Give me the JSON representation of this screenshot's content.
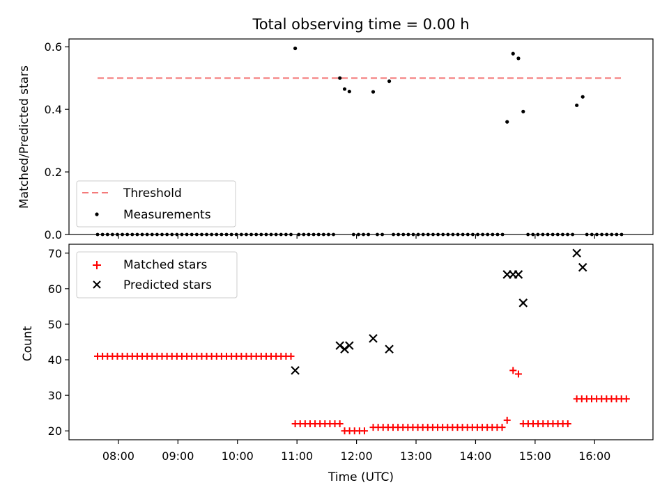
{
  "chart_data": [
    {
      "type": "scatter",
      "title": "Total observing time = 0.00 h",
      "xlabel": "",
      "ylabel": "Matched/Predicted stars",
      "ylim": [
        0,
        0.625
      ],
      "yticks": [
        "0.0",
        "0.2",
        "0.4",
        "0.6"
      ],
      "ytick_values": [
        0,
        0.2,
        0.4,
        0.6
      ],
      "legend_position": "lower-left",
      "threshold": {
        "name": "Threshold",
        "value": 0.5,
        "x_start": 7.65,
        "x_end": 16.5,
        "color": "#f47a7a"
      },
      "measurements": {
        "name": "Measurements",
        "color": "#000000",
        "points": [
          {
            "x": 10.97,
            "y": 0.595
          },
          {
            "x": 11.72,
            "y": 0.5
          },
          {
            "x": 11.8,
            "y": 0.465
          },
          {
            "x": 11.88,
            "y": 0.457
          },
          {
            "x": 12.28,
            "y": 0.456
          },
          {
            "x": 12.55,
            "y": 0.49
          },
          {
            "x": 14.53,
            "y": 0.36
          },
          {
            "x": 14.63,
            "y": 0.578
          },
          {
            "x": 14.72,
            "y": 0.563
          },
          {
            "x": 14.8,
            "y": 0.393
          },
          {
            "x": 15.7,
            "y": 0.413
          },
          {
            "x": 15.8,
            "y": 0.44
          }
        ],
        "zero_segments": [
          [
            7.65,
            10.9
          ],
          [
            11.03,
            11.65
          ],
          [
            11.95,
            12.2
          ],
          [
            12.35,
            12.48
          ],
          [
            12.62,
            14.47
          ],
          [
            14.88,
            15.63
          ],
          [
            15.87,
            16.52
          ]
        ],
        "zero_step": 0.0833
      }
    },
    {
      "type": "scatter",
      "xlabel": "Time (UTC)",
      "ylabel": "Count",
      "ylim": [
        17.5,
        72.5
      ],
      "yticks": [
        "20",
        "30",
        "40",
        "50",
        "60",
        "70"
      ],
      "ytick_values": [
        20,
        30,
        40,
        50,
        60,
        70
      ],
      "xlim": [
        7.17,
        16.98
      ],
      "xticks": [
        "08:00",
        "09:00",
        "10:00",
        "11:00",
        "12:00",
        "13:00",
        "14:00",
        "15:00",
        "16:00"
      ],
      "xtick_values": [
        8,
        9,
        10,
        11,
        12,
        13,
        14,
        15,
        16
      ],
      "legend_position": "upper-left",
      "matched": {
        "name": "Matched stars",
        "color": "#ff0000",
        "segments": [
          {
            "x_start": 7.65,
            "x_end": 10.9,
            "y": 41
          },
          {
            "x_start": 10.97,
            "x_end": 11.72,
            "y": 22
          },
          {
            "x_start": 11.8,
            "x_end": 12.2,
            "y": 20
          },
          {
            "x_start": 12.28,
            "x_end": 14.47,
            "y": 21
          },
          {
            "x_start": 14.8,
            "x_end": 15.63,
            "y": 22
          },
          {
            "x_start": 15.7,
            "x_end": 16.55,
            "y": 29
          }
        ],
        "step": 0.0833,
        "points": [
          {
            "x": 14.53,
            "y": 23
          },
          {
            "x": 14.63,
            "y": 37
          },
          {
            "x": 14.72,
            "y": 36
          }
        ]
      },
      "predicted": {
        "name": "Predicted stars",
        "color": "#000000",
        "points": [
          {
            "x": 10.97,
            "y": 37
          },
          {
            "x": 11.72,
            "y": 44
          },
          {
            "x": 11.8,
            "y": 43
          },
          {
            "x": 11.88,
            "y": 44
          },
          {
            "x": 12.28,
            "y": 46
          },
          {
            "x": 12.55,
            "y": 43
          },
          {
            "x": 14.53,
            "y": 64
          },
          {
            "x": 14.63,
            "y": 64
          },
          {
            "x": 14.72,
            "y": 64
          },
          {
            "x": 14.8,
            "y": 56
          },
          {
            "x": 15.7,
            "y": 70
          },
          {
            "x": 15.8,
            "y": 66
          }
        ]
      }
    }
  ]
}
